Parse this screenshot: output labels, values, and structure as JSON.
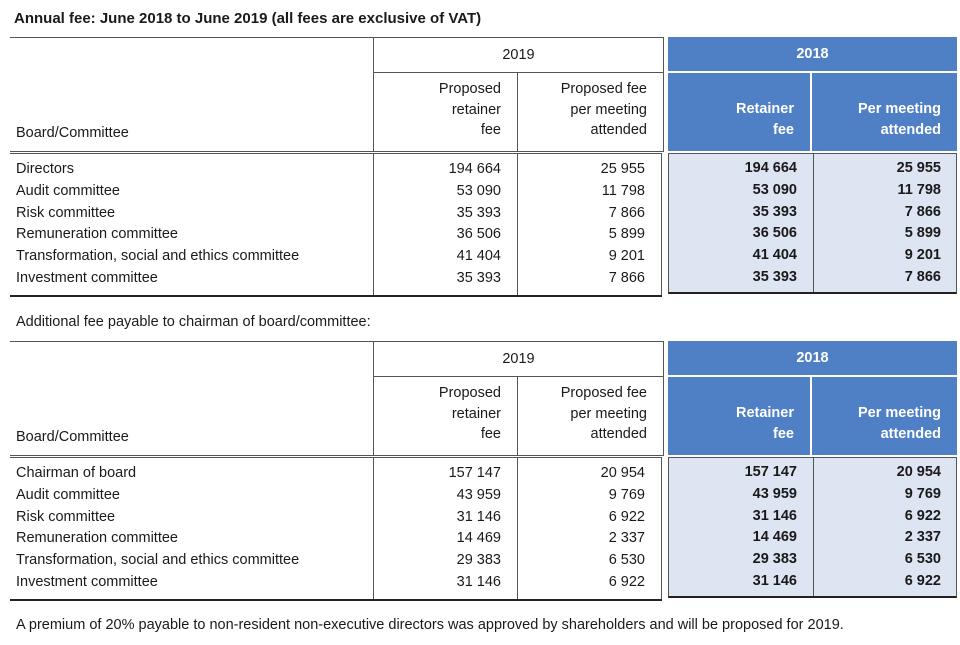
{
  "title": "Annual fee: June 2018 to June 2019 (all fees are exclusive of VAT)",
  "headers": {
    "label": "Board/Committee",
    "year_2019": "2019",
    "year_2018": "2018",
    "col_2019_a": [
      "Proposed",
      "retainer",
      "fee"
    ],
    "col_2019_b": [
      "Proposed fee",
      "per meeting",
      "attended"
    ],
    "col_2018_a": [
      "Retainer",
      "fee"
    ],
    "col_2018_b": [
      "Per meeting",
      "attended"
    ]
  },
  "colors": {
    "header_2018": "#4f7fc4",
    "body_2018": "#dde4f2"
  },
  "tables": [
    {
      "rows": [
        {
          "name": "Directors",
          "r2019": "194 664",
          "m2019": "25 955",
          "r2018": "194 664",
          "m2018": "25 955"
        },
        {
          "name": "Audit committee",
          "r2019": "53 090",
          "m2019": "11 798",
          "r2018": "53 090",
          "m2018": "11 798"
        },
        {
          "name": "Risk committee",
          "r2019": "35 393",
          "m2019": "7 866",
          "r2018": "35 393",
          "m2018": "7 866"
        },
        {
          "name": "Remuneration committee",
          "r2019": "36 506",
          "m2019": "5 899",
          "r2018": "36 506",
          "m2018": "5 899"
        },
        {
          "name": "Transformation, social and ethics committee",
          "r2019": "41 404",
          "m2019": "9 201",
          "r2018": "41 404",
          "m2018": "9 201"
        },
        {
          "name": "Investment committee",
          "r2019": "35 393",
          "m2019": "7 866",
          "r2018": "35 393",
          "m2018": "7 866"
        }
      ]
    },
    {
      "caption": "Additional fee payable to chairman of board/committee:",
      "rows": [
        {
          "name": "Chairman of board",
          "r2019": "157 147",
          "m2019": "20 954",
          "r2018": "157 147",
          "m2018": "20 954"
        },
        {
          "name": "Audit committee",
          "r2019": "43 959",
          "m2019": "9 769",
          "r2018": "43 959",
          "m2018": "9 769"
        },
        {
          "name": "Risk committee",
          "r2019": "31 146",
          "m2019": "6 922",
          "r2018": "31 146",
          "m2018": "6 922"
        },
        {
          "name": "Remuneration committee",
          "r2019": "14 469",
          "m2019": "2 337",
          "r2018": "14 469",
          "m2018": "2 337"
        },
        {
          "name": "Transformation, social and ethics committee",
          "r2019": "29 383",
          "m2019": "6 530",
          "r2018": "29 383",
          "m2018": "6 530"
        },
        {
          "name": "Investment committee",
          "r2019": "31 146",
          "m2019": "6 922",
          "r2018": "31 146",
          "m2018": "6 922"
        }
      ]
    }
  ],
  "footnote": "A premium of 20% payable to non-resident non-executive directors was approved by shareholders and will be proposed for 2019."
}
